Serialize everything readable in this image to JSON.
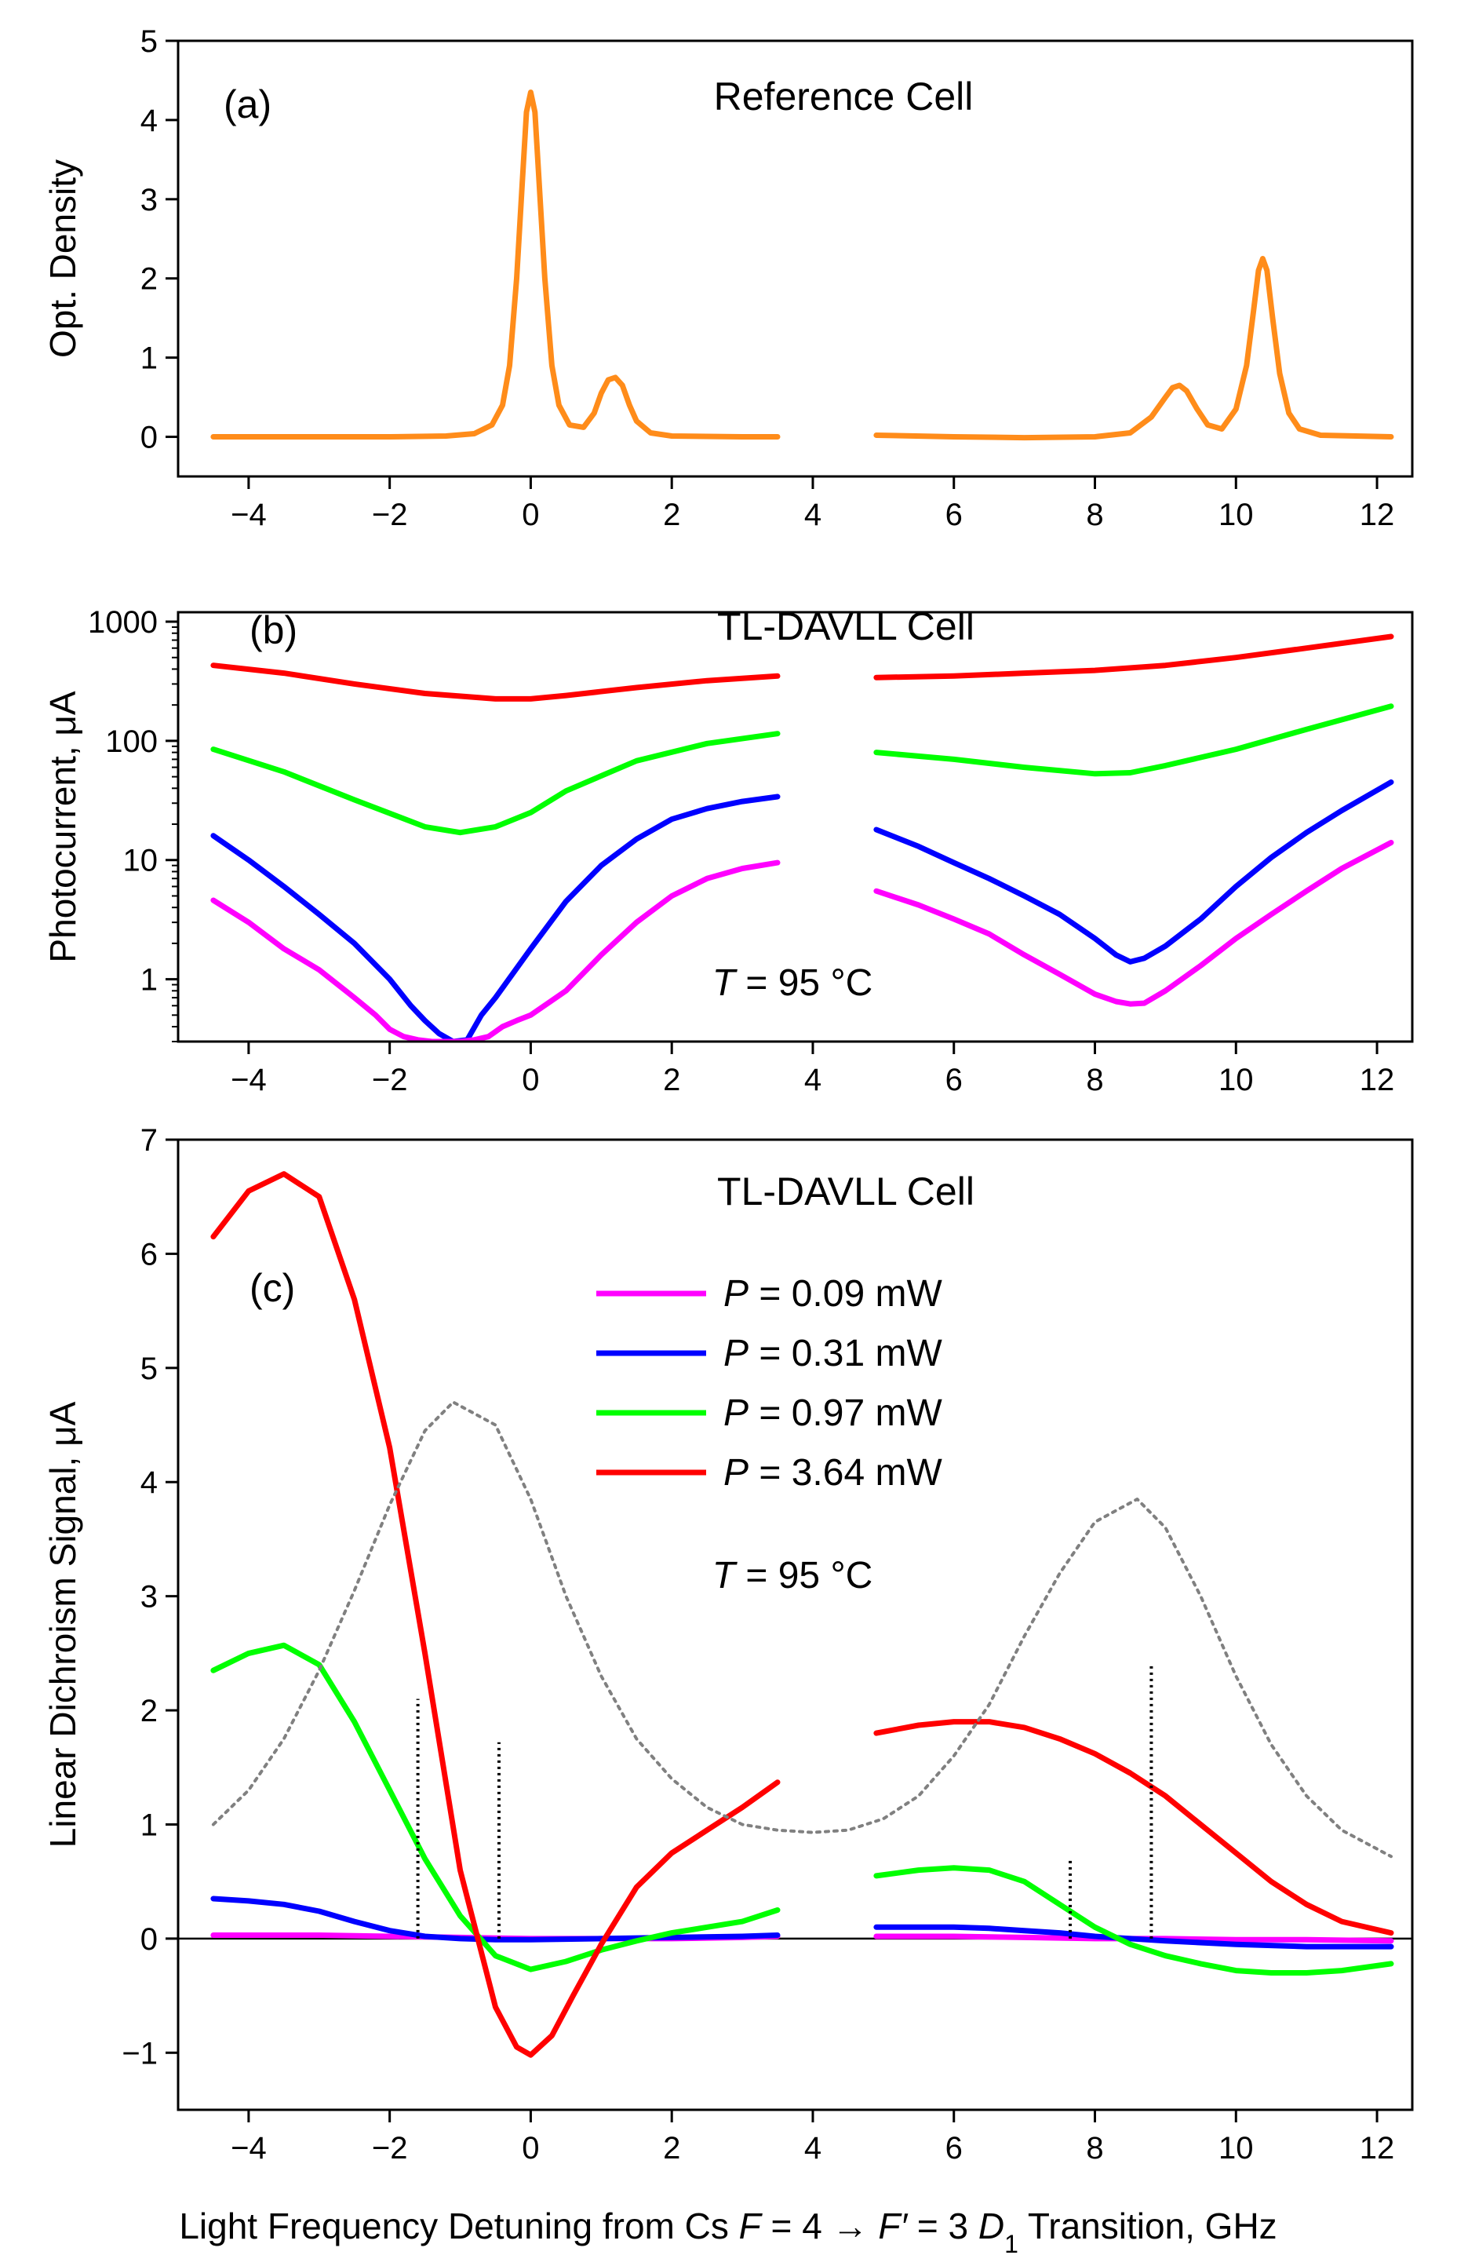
{
  "xlabel_parts": [
    "Light Frequency Detuning from Cs ",
    "F",
    " = 4 → ",
    "F′",
    " = 3 ",
    "D",
    "1",
    " Transition, GHz"
  ],
  "chart_data": [
    {
      "id": "a",
      "type": "line",
      "panel_label": "(a)",
      "title": "Reference Cell",
      "ylabel": "Opt. Density",
      "xlim": [
        -5,
        12.5
      ],
      "ylim": [
        -0.5,
        5
      ],
      "xticks": [
        -4,
        -2,
        0,
        2,
        4,
        6,
        8,
        10,
        12
      ],
      "yticks": [
        0,
        1,
        2,
        3,
        4,
        5
      ],
      "series": [
        {
          "name": "Reference optical density",
          "color": "#FF8C1A",
          "segments": [
            {
              "x": [
                -4.5,
                -3,
                -2,
                -1.2,
                -0.8,
                -0.55,
                -0.4,
                -0.3,
                -0.2,
                -0.12,
                -0.06,
                0,
                0.06,
                0.12,
                0.2,
                0.3,
                0.4,
                0.55,
                0.75,
                0.9,
                1.0,
                1.1,
                1.2,
                1.3,
                1.4,
                1.5,
                1.7,
                2.0,
                3.0,
                3.5
              ],
              "y": [
                0,
                0,
                0,
                0.01,
                0.04,
                0.15,
                0.4,
                0.9,
                2.0,
                3.2,
                4.1,
                4.35,
                4.1,
                3.2,
                2.0,
                0.9,
                0.4,
                0.15,
                0.12,
                0.3,
                0.55,
                0.72,
                0.75,
                0.65,
                0.4,
                0.2,
                0.05,
                0.01,
                0,
                0
              ]
            },
            {
              "x": [
                4.9,
                6,
                7,
                8,
                8.5,
                8.8,
                9.0,
                9.1,
                9.2,
                9.3,
                9.45,
                9.6,
                9.8,
                10.0,
                10.15,
                10.25,
                10.32,
                10.38,
                10.44,
                10.52,
                10.62,
                10.75,
                10.9,
                11.2,
                12.2
              ],
              "y": [
                0.02,
                0,
                -0.01,
                0,
                0.05,
                0.25,
                0.5,
                0.62,
                0.65,
                0.58,
                0.35,
                0.15,
                0.1,
                0.35,
                0.9,
                1.6,
                2.1,
                2.25,
                2.1,
                1.5,
                0.8,
                0.3,
                0.1,
                0.02,
                0
              ]
            }
          ]
        }
      ]
    },
    {
      "id": "b",
      "type": "line",
      "panel_label": "(b)",
      "title": "TL-DAVLL Cell",
      "ylabel": "Photocurrent, μA",
      "yscale": "log",
      "annotation": "T = 95 °C",
      "xlim": [
        -5,
        12.5
      ],
      "ylim": [
        0.3,
        1200
      ],
      "xticks": [
        -4,
        -2,
        0,
        2,
        4,
        6,
        8,
        10,
        12
      ],
      "yticks": [
        1,
        10,
        100,
        1000
      ],
      "series": [
        {
          "name": "P = 3.64 mW",
          "color": "#FF0000",
          "segments": [
            {
              "x": [
                -4.5,
                -3.5,
                -2.5,
                -1.5,
                -0.5,
                0,
                0.5,
                1.5,
                2.5,
                3.5
              ],
              "y": [
                430,
                370,
                300,
                250,
                225,
                225,
                240,
                280,
                320,
                350
              ]
            },
            {
              "x": [
                4.9,
                6,
                7,
                8,
                9,
                10,
                11,
                12.2
              ],
              "y": [
                340,
                350,
                370,
                390,
                430,
                500,
                600,
                750
              ]
            }
          ]
        },
        {
          "name": "P = 0.97 mW",
          "color": "#00FF00",
          "segments": [
            {
              "x": [
                -4.5,
                -3.5,
                -2.5,
                -1.5,
                -1,
                -0.5,
                0,
                0.5,
                1.5,
                2.5,
                3.5
              ],
              "y": [
                85,
                55,
                32,
                19,
                17,
                19,
                25,
                38,
                68,
                95,
                115
              ]
            },
            {
              "x": [
                4.9,
                6,
                7,
                8,
                8.5,
                9,
                10,
                11,
                12.2
              ],
              "y": [
                80,
                70,
                60,
                53,
                54,
                62,
                85,
                125,
                195
              ]
            }
          ]
        },
        {
          "name": "P = 0.31 mW",
          "color": "#0000FF",
          "segments": [
            {
              "x": [
                -4.5,
                -4,
                -3.5,
                -3,
                -2.5,
                -2,
                -1.7,
                -1.5,
                -1.3,
                -1.1,
                -0.9,
                -0.7,
                -0.5,
                0,
                0.5,
                1,
                1.5,
                2,
                2.5,
                3,
                3.5
              ],
              "y": [
                16,
                10,
                6,
                3.5,
                2,
                1,
                0.6,
                0.45,
                0.35,
                0.3,
                0.31,
                0.5,
                0.7,
                1.8,
                4.5,
                9,
                15,
                22,
                27,
                31,
                34
              ]
            },
            {
              "x": [
                4.9,
                5.5,
                6,
                6.5,
                7,
                7.5,
                8,
                8.3,
                8.5,
                8.7,
                9,
                9.5,
                10,
                10.5,
                11,
                11.5,
                12.2
              ],
              "y": [
                18,
                13,
                9.5,
                7,
                5,
                3.5,
                2.2,
                1.6,
                1.4,
                1.5,
                1.9,
                3.2,
                6,
                10.5,
                17,
                26,
                45
              ]
            }
          ]
        },
        {
          "name": "P = 0.09 mW",
          "color": "#FF00FF",
          "segments": [
            {
              "x": [
                -4.5,
                -4,
                -3.5,
                -3,
                -2.5,
                -2.2,
                -2,
                -1.8,
                -1.6,
                -1.4,
                -1.2,
                -1,
                -0.8,
                -0.6,
                -0.4,
                -0.2,
                0,
                0.5,
                1,
                1.5,
                2,
                2.5,
                3,
                3.5
              ],
              "y": [
                4.6,
                3,
                1.8,
                1.2,
                0.7,
                0.5,
                0.38,
                0.33,
                0.31,
                0.3,
                0.3,
                0.3,
                0.31,
                0.33,
                0.4,
                0.45,
                0.5,
                0.8,
                1.6,
                3,
                5,
                7,
                8.5,
                9.5
              ]
            },
            {
              "x": [
                4.9,
                5.5,
                6,
                6.5,
                7,
                7.5,
                8,
                8.3,
                8.5,
                8.7,
                9,
                9.5,
                10,
                10.5,
                11,
                11.5,
                12.2
              ],
              "y": [
                5.5,
                4.2,
                3.2,
                2.4,
                1.6,
                1.1,
                0.75,
                0.65,
                0.62,
                0.63,
                0.8,
                1.3,
                2.2,
                3.5,
                5.5,
                8.5,
                14
              ]
            }
          ]
        }
      ]
    },
    {
      "id": "c",
      "type": "line",
      "panel_label": "(c)",
      "title": "TL-DAVLL Cell",
      "ylabel": "Linear Dichroism Signal, μA",
      "annotation": "T = 95 °C",
      "legend_position": "upper-center",
      "xlim": [
        -5,
        12.5
      ],
      "ylim": [
        -1.5,
        7
      ],
      "xticks": [
        -4,
        -2,
        0,
        2,
        4,
        6,
        8,
        10,
        12
      ],
      "yticks": [
        -1,
        0,
        1,
        2,
        3,
        4,
        5,
        6,
        7
      ],
      "series": [
        {
          "name": "P = 0.09 mW",
          "color": "#FF00FF",
          "legend": true,
          "segments": [
            {
              "x": [
                -4.5,
                -3,
                -2,
                -1,
                0,
                1,
                2,
                3,
                3.5
              ],
              "y": [
                0.03,
                0.03,
                0.02,
                0.01,
                0,
                0,
                0,
                0.01,
                0.02
              ]
            },
            {
              "x": [
                4.9,
                6,
                7,
                8,
                9,
                10,
                11,
                12.2
              ],
              "y": [
                0.02,
                0.02,
                0.01,
                0,
                0,
                -0.01,
                -0.01,
                -0.02
              ]
            }
          ]
        },
        {
          "name": "P = 0.31 mW",
          "color": "#0000FF",
          "legend": true,
          "segments": [
            {
              "x": [
                -4.5,
                -4,
                -3.5,
                -3,
                -2.5,
                -2,
                -1.5,
                -1,
                -0.5,
                0,
                1,
                2,
                3,
                3.5
              ],
              "y": [
                0.35,
                0.33,
                0.3,
                0.24,
                0.15,
                0.07,
                0.02,
                0,
                -0.01,
                -0.01,
                0,
                0.01,
                0.02,
                0.03
              ]
            },
            {
              "x": [
                4.9,
                5.5,
                6,
                6.5,
                7,
                7.5,
                8,
                8.5,
                9,
                10,
                11,
                12.2
              ],
              "y": [
                0.1,
                0.1,
                0.1,
                0.09,
                0.07,
                0.05,
                0.02,
                0,
                -0.02,
                -0.05,
                -0.07,
                -0.07
              ]
            }
          ]
        },
        {
          "name": "P = 0.97 mW",
          "color": "#00FF00",
          "legend": true,
          "segments": [
            {
              "x": [
                -4.5,
                -4,
                -3.5,
                -3,
                -2.5,
                -2,
                -1.5,
                -1,
                -0.5,
                0,
                0.5,
                1,
                1.5,
                2,
                3,
                3.5
              ],
              "y": [
                2.35,
                2.5,
                2.57,
                2.4,
                1.9,
                1.3,
                0.7,
                0.2,
                -0.15,
                -0.27,
                -0.2,
                -0.1,
                -0.02,
                0.05,
                0.15,
                0.25
              ]
            },
            {
              "x": [
                4.9,
                5.5,
                6,
                6.5,
                7,
                7.5,
                8,
                8.5,
                9,
                9.5,
                10,
                10.5,
                11,
                11.5,
                12.2
              ],
              "y": [
                0.55,
                0.6,
                0.62,
                0.6,
                0.5,
                0.3,
                0.1,
                -0.05,
                -0.15,
                -0.22,
                -0.28,
                -0.3,
                -0.3,
                -0.28,
                -0.22
              ]
            }
          ]
        },
        {
          "name": "P = 3.64 mW",
          "color": "#FF0000",
          "legend": true,
          "segments": [
            {
              "x": [
                -4.5,
                -4,
                -3.5,
                -3,
                -2.5,
                -2,
                -1.5,
                -1,
                -0.5,
                -0.2,
                0,
                0.3,
                0.6,
                1,
                1.5,
                2,
                2.5,
                3,
                3.5
              ],
              "y": [
                6.15,
                6.55,
                6.7,
                6.5,
                5.6,
                4.3,
                2.5,
                0.6,
                -0.6,
                -0.95,
                -1.02,
                -0.85,
                -0.5,
                -0.05,
                0.45,
                0.75,
                0.95,
                1.15,
                1.37
              ]
            },
            {
              "x": [
                4.9,
                5.5,
                6,
                6.5,
                7,
                7.5,
                8,
                8.5,
                9,
                9.5,
                10,
                10.5,
                11,
                11.5,
                12.2
              ],
              "y": [
                1.8,
                1.87,
                1.9,
                1.9,
                1.85,
                1.75,
                1.62,
                1.45,
                1.25,
                1.0,
                0.75,
                0.5,
                0.3,
                0.15,
                0.05
              ]
            }
          ]
        },
        {
          "name": "Doppler profile (scaled)",
          "color": "#808080",
          "dashed": "dotted",
          "legend": false,
          "segments": [
            {
              "x": [
                -4.5,
                -4,
                -3.5,
                -3,
                -2.5,
                -2,
                -1.5,
                -1.1,
                -0.5,
                0,
                0.5,
                1,
                1.5,
                2,
                2.5,
                3,
                3.5,
                4,
                4.5,
                5,
                5.5,
                6,
                6.5,
                7,
                7.5,
                8,
                8.6,
                9,
                9.5,
                10,
                10.5,
                11,
                11.5,
                12.2
              ],
              "y": [
                1.0,
                1.3,
                1.75,
                2.35,
                3.05,
                3.8,
                4.45,
                4.7,
                4.5,
                3.85,
                3.0,
                2.3,
                1.75,
                1.4,
                1.15,
                1.0,
                0.95,
                0.93,
                0.95,
                1.05,
                1.25,
                1.6,
                2.05,
                2.65,
                3.2,
                3.65,
                3.85,
                3.6,
                3.0,
                2.3,
                1.7,
                1.25,
                0.95,
                0.72
              ]
            }
          ]
        }
      ],
      "hyperfine_lines": [
        {
          "x": -1.6,
          "height": 2.1
        },
        {
          "x": -0.45,
          "height": 1.72
        },
        {
          "x": 7.65,
          "height": 0.7
        },
        {
          "x": 8.8,
          "height": 2.4
        }
      ]
    }
  ]
}
